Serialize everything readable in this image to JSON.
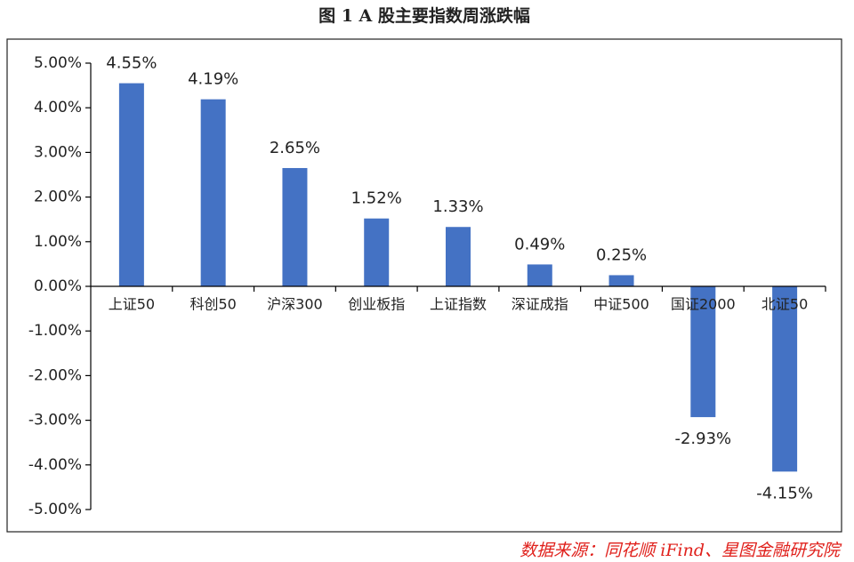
{
  "chart_data": {
    "type": "bar",
    "title": "图 1 A 股主要指数周涨跌幅",
    "categories": [
      "上证50",
      "科创50",
      "沪深300",
      "创业板指",
      "上证指数",
      "深证成指",
      "中证500",
      "国证2000",
      "北证50"
    ],
    "values": [
      4.55,
      4.19,
      2.65,
      1.52,
      1.33,
      0.49,
      0.25,
      -2.93,
      -4.15
    ],
    "value_labels": [
      "4.55%",
      "4.19%",
      "2.65%",
      "1.52%",
      "1.33%",
      "0.49%",
      "0.25%",
      "-2.93%",
      "-4.15%"
    ],
    "color": "#4472c4",
    "ylim": [
      -5,
      5
    ],
    "yticks": [
      {
        "value": 5,
        "label": "5.00%"
      },
      {
        "value": 4,
        "label": "4.00%"
      },
      {
        "value": 3,
        "label": "3.00%"
      },
      {
        "value": 2,
        "label": "2.00%"
      },
      {
        "value": 1,
        "label": "1.00%"
      },
      {
        "value": 0,
        "label": "0.00%"
      },
      {
        "value": -1,
        "label": "-1.00%"
      },
      {
        "value": -2,
        "label": "-2.00%"
      },
      {
        "value": -3,
        "label": "-3.00%"
      },
      {
        "value": -4,
        "label": "-4.00%"
      },
      {
        "value": -5,
        "label": "-5.00%"
      }
    ],
    "grid": false,
    "source": "数据来源：同花顺 iFind、星图金融研究院"
  }
}
